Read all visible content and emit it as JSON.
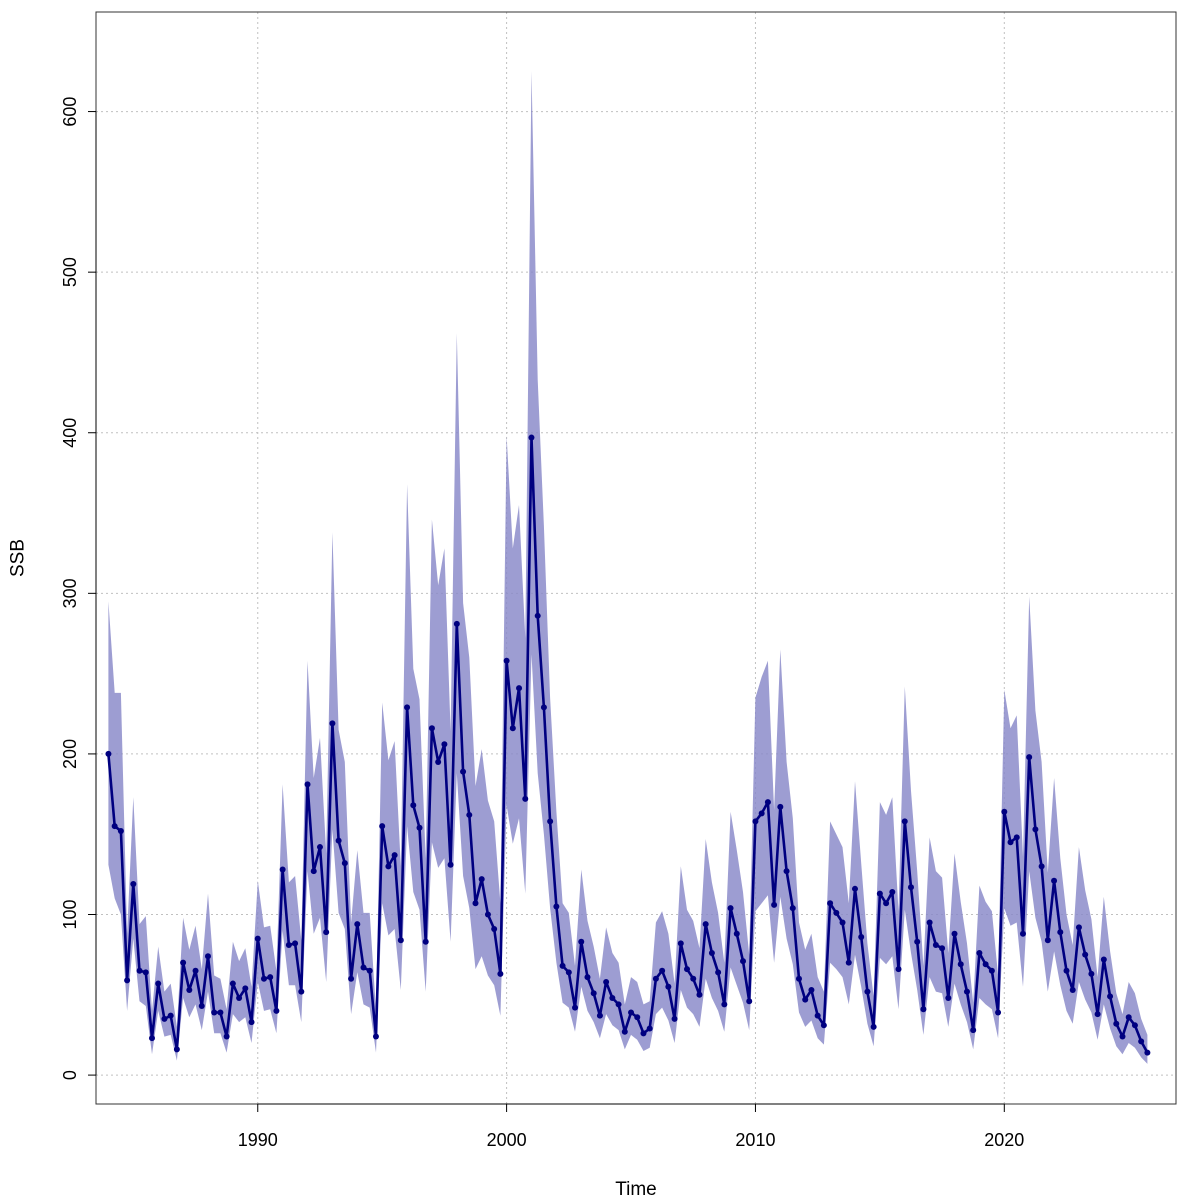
{
  "chart_data": {
    "type": "line",
    "xlabel": "Time",
    "ylabel": "SSB",
    "xlim": [
      1983.5,
      2026.9
    ],
    "ylim": [
      -18,
      662
    ],
    "x_ticks": [
      1990,
      2000,
      2010,
      2020
    ],
    "y_ticks": [
      0,
      100,
      200,
      300,
      400,
      500,
      600
    ],
    "grid": true,
    "series": [
      {
        "x": [
          1984.0,
          1984.25,
          1984.5,
          1984.75,
          1985.0,
          1985.25,
          1985.5,
          1985.75,
          1986.0,
          1986.25,
          1986.5,
          1986.75,
          1987.0,
          1987.25,
          1987.5,
          1987.75,
          1988.0,
          1988.25,
          1988.5,
          1988.75,
          1989.0,
          1989.25,
          1989.5,
          1989.75,
          1990.0,
          1990.25,
          1990.5,
          1990.75,
          1991.0,
          1991.25,
          1991.5,
          1991.75,
          1992.0,
          1992.25,
          1992.5,
          1992.75,
          1993.0,
          1993.25,
          1993.5,
          1993.75,
          1994.0,
          1994.25,
          1994.5,
          1994.75,
          1995.0,
          1995.25,
          1995.5,
          1995.75,
          1996.0,
          1996.25,
          1996.5,
          1996.75,
          1997.0,
          1997.25,
          1997.5,
          1997.75,
          1998.0,
          1998.25,
          1998.5,
          1998.75,
          1999.0,
          1999.25,
          1999.5,
          1999.75,
          2000.0,
          2000.25,
          2000.5,
          2000.75,
          2001.0,
          2001.25,
          2001.5,
          2001.75,
          2002.0,
          2002.25,
          2002.5,
          2002.75,
          2003.0,
          2003.25,
          2003.5,
          2003.75,
          2004.0,
          2004.25,
          2004.5,
          2004.75,
          2005.0,
          2005.25,
          2005.5,
          2005.75,
          2006.0,
          2006.25,
          2006.5,
          2006.75,
          2007.0,
          2007.25,
          2007.5,
          2007.75,
          2008.0,
          2008.25,
          2008.5,
          2008.75,
          2009.0,
          2009.25,
          2009.5,
          2009.75,
          2010.0,
          2010.25,
          2010.5,
          2010.75,
          2011.0,
          2011.25,
          2011.5,
          2011.75,
          2012.0,
          2012.25,
          2012.5,
          2012.75,
          2013.0,
          2013.25,
          2013.5,
          2013.75,
          2014.0,
          2014.25,
          2014.5,
          2014.75,
          2015.0,
          2015.25,
          2015.5,
          2015.75,
          2016.0,
          2016.25,
          2016.5,
          2016.75,
          2017.0,
          2017.25,
          2017.5,
          2017.75,
          2018.0,
          2018.25,
          2018.5,
          2018.75,
          2019.0,
          2019.25,
          2019.5,
          2019.75,
          2020.0,
          2020.25,
          2020.5,
          2020.75,
          2021.0,
          2021.25,
          2021.5,
          2021.75,
          2022.0,
          2022.25,
          2022.5,
          2022.75,
          2023.0,
          2023.25,
          2023.5,
          2023.75,
          2024.0,
          2024.25,
          2024.5,
          2024.75,
          2025.0,
          2025.25,
          2025.5,
          2025.75
        ],
        "values": [
          200,
          155,
          152,
          59,
          119,
          65,
          64,
          23,
          57,
          35,
          37,
          16,
          70,
          53,
          65,
          43,
          74,
          39,
          39,
          24,
          57,
          48,
          54,
          33,
          85,
          60,
          61,
          40,
          128,
          81,
          82,
          52,
          181,
          127,
          142,
          89,
          219,
          146,
          132,
          60,
          94,
          67,
          65,
          24,
          155,
          130,
          137,
          84,
          229,
          168,
          154,
          83,
          216,
          195,
          206,
          131,
          281,
          189,
          162,
          107,
          122,
          100,
          91,
          63,
          258,
          216,
          241,
          172,
          397,
          286,
          229,
          158,
          105,
          68,
          64,
          42,
          83,
          61,
          51,
          37,
          58,
          48,
          44,
          27,
          39,
          36,
          26,
          29,
          60,
          65,
          55,
          35,
          82,
          66,
          60,
          50,
          94,
          76,
          64,
          44,
          104,
          88,
          71,
          46,
          158,
          163,
          170,
          106,
          167,
          127,
          104,
          60,
          47,
          53,
          37,
          31,
          107,
          101,
          95,
          70,
          116,
          86,
          52,
          30,
          113,
          107,
          114,
          66,
          158,
          117,
          83,
          41,
          95,
          81,
          79,
          48,
          88,
          69,
          52,
          28,
          76,
          69,
          65,
          39,
          164,
          145,
          148,
          88,
          198,
          153,
          130,
          84,
          121,
          89,
          65,
          53,
          92,
          75,
          63,
          38,
          72,
          49,
          32,
          24,
          36,
          31,
          21,
          14
        ],
        "lower": [
          131,
          110,
          100,
          40,
          85,
          46,
          43,
          13,
          40,
          24,
          25,
          9,
          48,
          36,
          44,
          28,
          52,
          26,
          26,
          14,
          38,
          33,
          36,
          20,
          58,
          40,
          41,
          26,
          90,
          56,
          56,
          33,
          127,
          88,
          98,
          58,
          153,
          101,
          91,
          38,
          64,
          44,
          42,
          14,
          107,
          87,
          91,
          53,
          155,
          114,
          103,
          52,
          145,
          129,
          135,
          83,
          188,
          124,
          104,
          66,
          74,
          62,
          56,
          37,
          168,
          144,
          160,
          113,
          262,
          188,
          150,
          104,
          70,
          45,
          42,
          27,
          55,
          40,
          33,
          23,
          38,
          31,
          28,
          16,
          25,
          22,
          15,
          17,
          38,
          42,
          34,
          20,
          53,
          42,
          38,
          30,
          60,
          48,
          40,
          27,
          67,
          56,
          45,
          28,
          102,
          107,
          112,
          70,
          111,
          85,
          69,
          39,
          30,
          34,
          23,
          19,
          70,
          66,
          61,
          44,
          75,
          55,
          32,
          18,
          73,
          69,
          74,
          41,
          103,
          76,
          53,
          25,
          61,
          52,
          51,
          30,
          57,
          44,
          33,
          16,
          48,
          44,
          41,
          23,
          104,
          93,
          95,
          55,
          127,
          98,
          83,
          52,
          77,
          56,
          40,
          32,
          58,
          47,
          39,
          22,
          44,
          29,
          18,
          13,
          20,
          17,
          11,
          7
        ],
        "upper": [
          295,
          238,
          238,
          88,
          173,
          94,
          99,
          40,
          80,
          52,
          57,
          30,
          98,
          78,
          93,
          66,
          113,
          62,
          60,
          41,
          83,
          71,
          79,
          55,
          121,
          92,
          93,
          65,
          181,
          120,
          124,
          84,
          258,
          185,
          210,
          138,
          338,
          215,
          195,
          95,
          140,
          101,
          101,
          40,
          232,
          196,
          208,
          130,
          368,
          253,
          234,
          135,
          346,
          305,
          328,
          214,
          462,
          294,
          260,
          180,
          203,
          171,
          158,
          107,
          398,
          328,
          355,
          272,
          625,
          433,
          342,
          235,
          164,
          107,
          101,
          68,
          128,
          96,
          80,
          60,
          92,
          76,
          70,
          44,
          61,
          58,
          44,
          46,
          95,
          102,
          88,
          57,
          130,
          103,
          96,
          79,
          147,
          120,
          101,
          70,
          164,
          140,
          114,
          75,
          235,
          248,
          258,
          165,
          265,
          195,
          160,
          95,
          78,
          88,
          61,
          52,
          158,
          150,
          142,
          107,
          183,
          132,
          82,
          49,
          170,
          162,
          173,
          102,
          242,
          177,
          127,
          68,
          148,
          127,
          123,
          76,
          138,
          108,
          82,
          45,
          118,
          108,
          102,
          62,
          240,
          216,
          224,
          136,
          298,
          227,
          195,
          126,
          185,
          135,
          100,
          81,
          142,
          115,
          97,
          61,
          111,
          77,
          51,
          38,
          58,
          51,
          35,
          25
        ]
      }
    ]
  },
  "colors": {
    "line": "#000080",
    "band": "#8888c8",
    "grid": "#c0c0c0"
  }
}
